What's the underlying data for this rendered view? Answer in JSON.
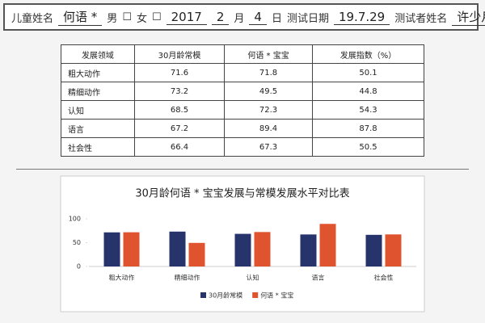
{
  "header": {
    "name_label": "儿童姓名",
    "name": "何语 *",
    "male_label": "男",
    "male_box": "☐",
    "female_label": "女",
    "female_box": "☐",
    "birth_year": "2017",
    "birth_month": "2",
    "month_label": "月",
    "birth_day": "4",
    "day_label": "日",
    "test_date_label": "测试日期",
    "test_date": "19.7.29",
    "tester_label": "测试者姓名",
    "tester": "许少月"
  },
  "table": {
    "columns": [
      "发展领域",
      "30月龄常模",
      "何语 * 宝宝",
      "发展指数（%）"
    ],
    "rows": [
      [
        "粗大动作",
        "71.6",
        "71.8",
        "50.1"
      ],
      [
        "精细动作",
        "73.2",
        "49.5",
        "44.8"
      ],
      [
        "认知",
        "68.5",
        "72.3",
        "54.3"
      ],
      [
        "语言",
        "67.2",
        "89.4",
        "87.8"
      ],
      [
        "社会性",
        "66.4",
        "67.3",
        "50.5"
      ]
    ]
  },
  "chart_data": {
    "type": "bar",
    "title": "30月龄何语 * 宝宝发展与常模发展水平对比表",
    "categories": [
      "粗大动作",
      "精细动作",
      "认知",
      "语言",
      "社会性"
    ],
    "series": [
      {
        "name": "30月龄常模",
        "color": "#27336b",
        "values": [
          71.6,
          73.2,
          68.5,
          67.2,
          66.4
        ]
      },
      {
        "name": "何语 * 宝宝",
        "color": "#e0532f",
        "values": [
          71.8,
          49.5,
          72.3,
          89.4,
          67.3
        ]
      }
    ],
    "ylim": [
      0,
      100
    ],
    "yticks": [
      0,
      50,
      100
    ],
    "legend": "bottom"
  }
}
